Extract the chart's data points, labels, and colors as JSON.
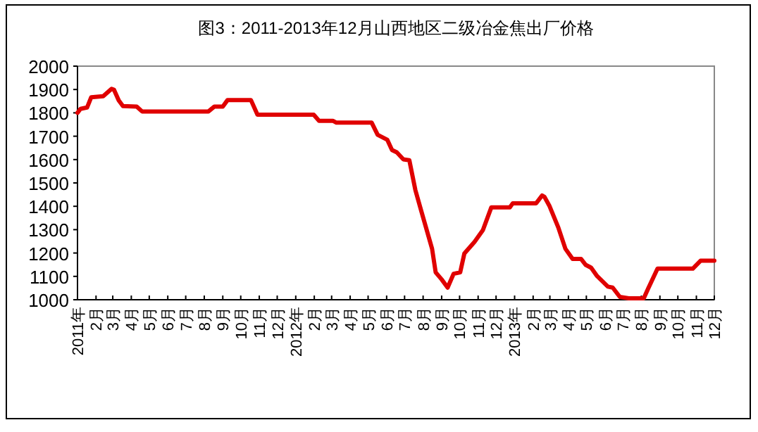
{
  "chart_data": {
    "type": "line",
    "title": "图3：2011-2013年12月山西地区二级冶金焦出厂价格",
    "xlim": [
      "2011-01",
      "2013-12"
    ],
    "xticks": [
      {
        "value": "2011-01",
        "label": "2011年"
      },
      {
        "value": "2011-02",
        "label": "2月"
      },
      {
        "value": "2011-03",
        "label": "3月"
      },
      {
        "value": "2011-04",
        "label": "4月"
      },
      {
        "value": "2011-05",
        "label": "5月"
      },
      {
        "value": "2011-06",
        "label": "6月"
      },
      {
        "value": "2011-07",
        "label": "7月"
      },
      {
        "value": "2011-08",
        "label": "8月"
      },
      {
        "value": "2011-09",
        "label": "9月"
      },
      {
        "value": "2011-10",
        "label": "10月"
      },
      {
        "value": "2011-11",
        "label": "11月"
      },
      {
        "value": "2011-12",
        "label": "12月"
      },
      {
        "value": "2012-01",
        "label": "2012年"
      },
      {
        "value": "2012-02",
        "label": "2月"
      },
      {
        "value": "2012-03",
        "label": "3月"
      },
      {
        "value": "2012-04",
        "label": "4月"
      },
      {
        "value": "2012-05",
        "label": "5月"
      },
      {
        "value": "2012-06",
        "label": "6月"
      },
      {
        "value": "2012-07",
        "label": "7月"
      },
      {
        "value": "2012-08",
        "label": "8月"
      },
      {
        "value": "2012-09",
        "label": "9月"
      },
      {
        "value": "2012-10",
        "label": "10月"
      },
      {
        "value": "2012-11",
        "label": "11月"
      },
      {
        "value": "2012-12",
        "label": "12月"
      },
      {
        "value": "2013-01",
        "label": "2013年"
      },
      {
        "value": "2013-02",
        "label": "2月"
      },
      {
        "value": "2013-03",
        "label": "3月"
      },
      {
        "value": "2013-04",
        "label": "4月"
      },
      {
        "value": "2013-05",
        "label": "5月"
      },
      {
        "value": "2013-06",
        "label": "6月"
      },
      {
        "value": "2013-07",
        "label": "7月"
      },
      {
        "value": "2013-08",
        "label": "8月"
      },
      {
        "value": "2013-09",
        "label": "9月"
      },
      {
        "value": "2013-10",
        "label": "10月"
      },
      {
        "value": "2013-11",
        "label": "11月"
      },
      {
        "value": "2013-12",
        "label": "12月"
      }
    ],
    "ylim": [
      1000,
      2000
    ],
    "yticks": [
      1000,
      1100,
      1200,
      1300,
      1400,
      1500,
      1600,
      1700,
      1800,
      1900,
      2000
    ],
    "grid": false,
    "marker": "none",
    "line_style": "solid",
    "series": [
      {
        "color": "#e00000",
        "x": [
          "2011-01-01",
          "2011-01-06",
          "2011-01-17",
          "2011-01-24",
          "2011-02-13",
          "2011-02-27",
          "2011-03-03",
          "2011-03-11",
          "2011-03-18",
          "2011-04-10",
          "2011-04-19",
          "2011-08-08",
          "2011-08-18",
          "2011-09-01",
          "2011-09-09",
          "2011-10-18",
          "2011-10-29",
          "2012-01-31",
          "2012-02-09",
          "2012-03-03",
          "2012-03-09",
          "2012-05-07",
          "2012-05-17",
          "2012-06-02",
          "2012-06-10",
          "2012-06-18",
          "2012-06-29",
          "2012-07-09",
          "2012-07-19",
          "2012-07-29",
          "2012-08-16",
          "2012-08-22",
          "2012-09-01",
          "2012-09-11",
          "2012-09-21",
          "2012-10-02",
          "2012-10-09",
          "2012-10-26",
          "2012-11-09",
          "2012-11-23",
          "2012-12-24",
          "2012-12-29",
          "2013-02-06",
          "2013-02-16",
          "2013-02-20",
          "2013-02-28",
          "2013-03-15",
          "2013-03-27",
          "2013-04-08",
          "2013-04-22",
          "2013-04-30",
          "2013-05-09",
          "2013-05-19",
          "2013-06-06",
          "2013-06-14",
          "2013-06-26",
          "2013-07-11",
          "2013-08-05",
          "2013-08-12",
          "2013-08-28",
          "2013-10-26",
          "2013-11-08",
          "2013-12-01"
        ],
        "values": [
          1800,
          1817,
          1823,
          1867,
          1871,
          1903,
          1899,
          1853,
          1829,
          1827,
          1806,
          1806,
          1827,
          1827,
          1855,
          1855,
          1792,
          1792,
          1766,
          1766,
          1758,
          1758,
          1706,
          1685,
          1641,
          1631,
          1601,
          1597,
          1470,
          1379,
          1218,
          1117,
          1087,
          1052,
          1111,
          1117,
          1198,
          1248,
          1298,
          1395,
          1395,
          1413,
          1413,
          1446,
          1440,
          1403,
          1310,
          1218,
          1175,
          1175,
          1149,
          1137,
          1101,
          1056,
          1052,
          1012,
          1006,
          1006,
          1046,
          1133,
          1133,
          1167,
          1167
        ]
      }
    ]
  }
}
